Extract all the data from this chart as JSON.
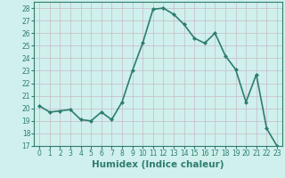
{
  "x": [
    0,
    1,
    2,
    3,
    4,
    5,
    6,
    7,
    8,
    9,
    10,
    11,
    12,
    13,
    14,
    15,
    16,
    17,
    18,
    19,
    20,
    21,
    22,
    23
  ],
  "y": [
    20.2,
    19.7,
    19.8,
    19.9,
    19.1,
    19.0,
    19.7,
    19.1,
    20.5,
    23.0,
    25.2,
    27.9,
    28.0,
    27.5,
    26.7,
    25.6,
    25.2,
    26.0,
    24.2,
    23.1,
    20.5,
    22.7,
    18.4,
    17.0
  ],
  "line_color": "#2e7d6e",
  "marker": "D",
  "marker_size": 2.0,
  "bg_color": "#cff0ec",
  "grid_color": "#c8b8c8",
  "xlabel": "Humidex (Indice chaleur)",
  "xlim": [
    -0.5,
    23.5
  ],
  "ylim": [
    17,
    28.5
  ],
  "yticks": [
    17,
    18,
    19,
    20,
    21,
    22,
    23,
    24,
    25,
    26,
    27,
    28
  ],
  "xticks": [
    0,
    1,
    2,
    3,
    4,
    5,
    6,
    7,
    8,
    9,
    10,
    11,
    12,
    13,
    14,
    15,
    16,
    17,
    18,
    19,
    20,
    21,
    22,
    23
  ],
  "tick_fontsize": 5.5,
  "xlabel_fontsize": 7.5,
  "line_width": 1.2
}
